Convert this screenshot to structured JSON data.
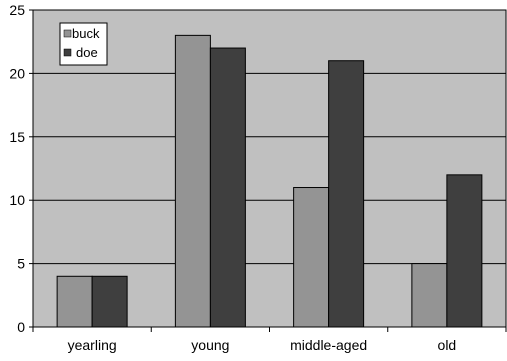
{
  "chart_data": {
    "type": "bar",
    "categories": [
      "yearling",
      "young",
      "middle-aged",
      "old"
    ],
    "series": [
      {
        "name": "buck",
        "values": [
          4,
          23,
          11,
          5
        ],
        "color": "#949494"
      },
      {
        "name": "doe",
        "values": [
          4,
          22,
          21,
          12
        ],
        "color": "#3f3f3f"
      }
    ],
    "ylim": [
      0,
      25
    ],
    "yticks": [
      0,
      5,
      10,
      15,
      20,
      25
    ],
    "title": "",
    "xlabel": "",
    "ylabel": "",
    "grid": "horizontal",
    "legend_position": "top-left",
    "plot_background": "#c0c0c0"
  }
}
